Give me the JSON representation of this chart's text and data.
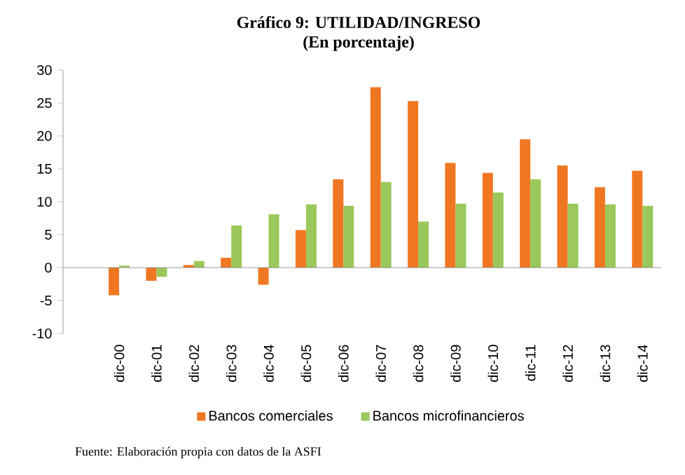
{
  "chart_data": {
    "type": "bar",
    "title": "Gráfico 9: UTILIDAD/INGRESO",
    "subtitle": "(En porcentaje)",
    "categories": [
      null,
      "dic-00",
      "dic-01",
      "dic-02",
      "dic-03",
      "dic-04",
      "dic-05",
      "dic-06",
      "dic-07",
      "dic-08",
      "dic-09",
      "dic-10",
      "dic-11",
      "dic-12",
      "dic-13",
      "dic-14"
    ],
    "series": [
      {
        "name": "Bancos comerciales",
        "color": "#f07722",
        "values": [
          null,
          -4.2,
          -2.0,
          0.4,
          1.5,
          -2.6,
          5.7,
          13.4,
          27.4,
          25.3,
          15.9,
          14.4,
          19.5,
          15.5,
          12.2,
          14.7
        ]
      },
      {
        "name": "Bancos microfinancieros",
        "color": "#9bc85a",
        "values": [
          null,
          0.3,
          -1.4,
          1.0,
          6.4,
          8.1,
          9.6,
          9.4,
          13.0,
          7.0,
          9.7,
          11.4,
          13.4,
          9.7,
          9.6,
          9.4
        ]
      }
    ],
    "ylim": [
      -10,
      30
    ],
    "yticks": [
      -10,
      -5,
      0,
      5,
      10,
      15,
      20,
      25,
      30
    ],
    "legend": "bottom",
    "annotations": [
      "Fuente: Elaboración propia con datos de la ASFI"
    ]
  }
}
